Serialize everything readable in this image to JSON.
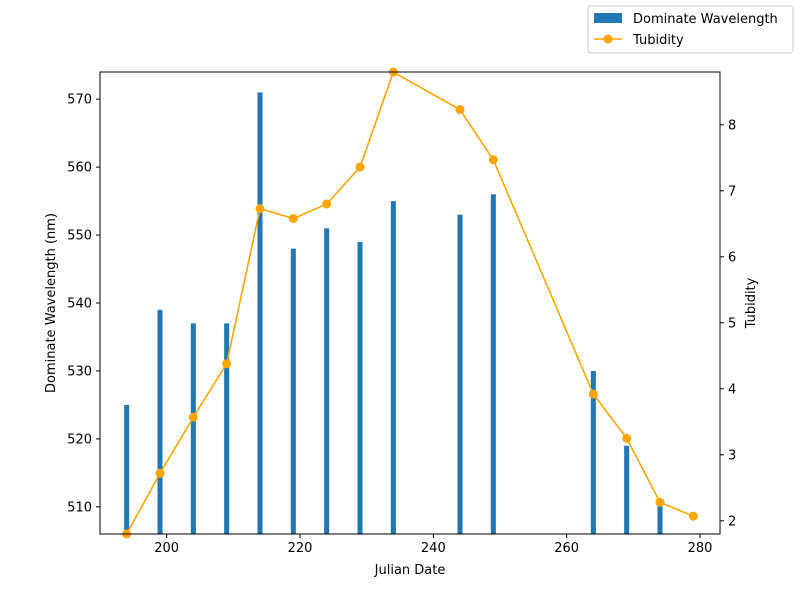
{
  "chart_data": {
    "type": "bar+line",
    "xlabel": "Julian Date",
    "ylabel_left": "Dominate Wavelength (nm)",
    "ylabel_right": "Tubidity",
    "xlim": [
      190,
      283
    ],
    "ylim_left": [
      506,
      574
    ],
    "ylim_right": [
      1.8,
      8.8
    ],
    "x_ticks": [
      200,
      220,
      240,
      260,
      280
    ],
    "y_left_ticks": [
      510,
      520,
      530,
      540,
      550,
      560,
      570
    ],
    "y_right_ticks": [
      2,
      3,
      4,
      5,
      6,
      7,
      8
    ],
    "grid": false,
    "legend_position": "upper-right, outside plot",
    "series": [
      {
        "name": "Dominate Wavelength",
        "kind": "bar",
        "axis": "left",
        "color": "#1f77b4",
        "x": [
          194,
          199,
          204,
          209,
          214,
          219,
          224,
          229,
          234,
          244,
          249,
          264,
          269,
          274
        ],
        "values": [
          525,
          539,
          537,
          537,
          571,
          548,
          551,
          549,
          555,
          553,
          556,
          530,
          519,
          511
        ]
      },
      {
        "name": "Tubidity",
        "kind": "line",
        "axis": "right",
        "color": "#ffa500",
        "x": [
          194,
          199,
          204,
          209,
          214,
          219,
          224,
          229,
          234,
          244,
          249,
          264,
          269,
          274,
          279
        ],
        "values": [
          1.8,
          2.72,
          3.57,
          4.38,
          6.73,
          6.58,
          6.8,
          7.36,
          8.8,
          8.23,
          7.47,
          3.92,
          3.25,
          2.28,
          2.07
        ]
      }
    ]
  }
}
